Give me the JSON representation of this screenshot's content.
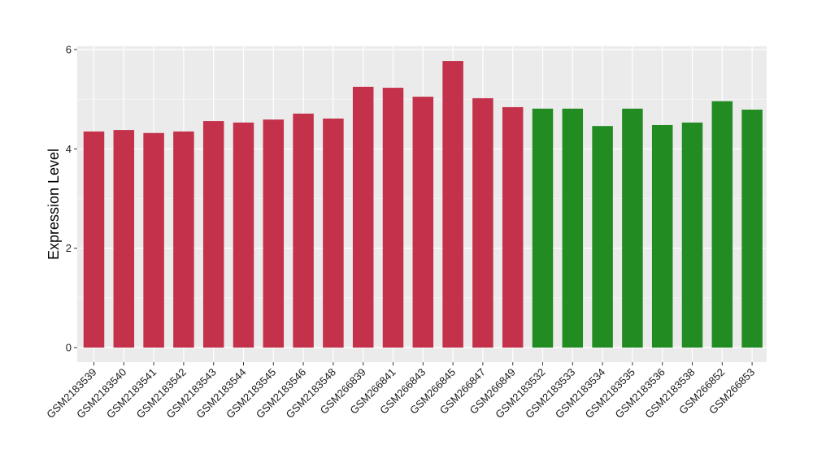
{
  "chart_data": {
    "type": "bar",
    "title": "",
    "xlabel": "",
    "ylabel": "Expression Level",
    "ylim": [
      0,
      6
    ],
    "yticks": [
      0,
      2,
      4,
      6
    ],
    "grid": true,
    "legend": "none",
    "categories": [
      "GSM2183539",
      "GSM2183540",
      "GSM2183541",
      "GSM2183542",
      "GSM2183543",
      "GSM2183544",
      "GSM2183545",
      "GSM2183546",
      "GSM2183548",
      "GSM266839",
      "GSM266841",
      "GSM266843",
      "GSM266845",
      "GSM266847",
      "GSM266849",
      "GSM2183532",
      "GSM2183533",
      "GSM2183534",
      "GSM2183535",
      "GSM2183536",
      "GSM2183538",
      "GSM266852",
      "GSM266853"
    ],
    "values": [
      4.35,
      4.38,
      4.32,
      4.35,
      4.56,
      4.53,
      4.59,
      4.71,
      4.61,
      5.25,
      5.23,
      5.05,
      5.77,
      5.02,
      4.84,
      4.81,
      4.81,
      4.46,
      4.81,
      4.48,
      4.53,
      4.96,
      4.79
    ],
    "groups": [
      "a",
      "a",
      "a",
      "a",
      "a",
      "a",
      "a",
      "a",
      "a",
      "a",
      "a",
      "a",
      "a",
      "a",
      "a",
      "b",
      "b",
      "b",
      "b",
      "b",
      "b",
      "b",
      "b"
    ],
    "colors": {
      "a": "#c3314a",
      "b": "#228b22",
      "panel_background": "#ebebeb",
      "grid_major": "#ffffff",
      "grid_minor": "#f5f5f5"
    }
  }
}
